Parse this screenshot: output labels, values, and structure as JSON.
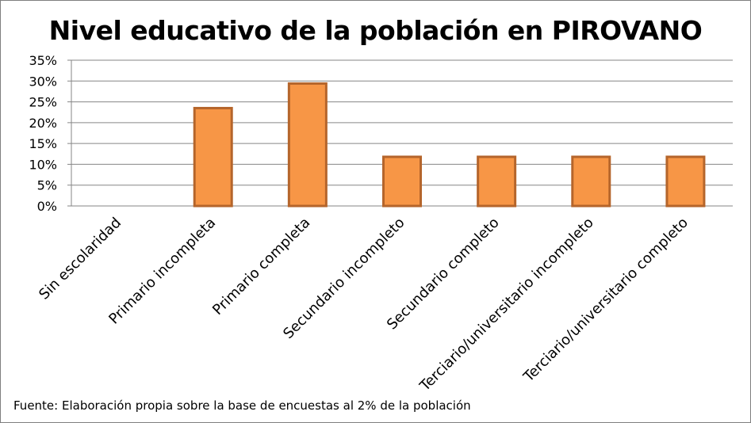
{
  "chart_data": {
    "type": "bar",
    "title": "Nivel educativo de la población en PIROVANO",
    "categories": [
      "Sin escolaridad",
      "Primario incompleta",
      "Primario completa",
      "Secundario incompleto",
      "Secundario completo",
      "Terciario/universitario incompleto",
      "Terciario/universitario completo"
    ],
    "values": [
      0,
      23.5,
      29.4,
      11.8,
      11.8,
      11.8,
      11.8
    ],
    "y_unit": "%",
    "ylim": [
      0,
      35
    ],
    "y_ticks": [
      "0%",
      "5%",
      "10%",
      "15%",
      "20%",
      "25%",
      "30%",
      "35%"
    ],
    "grid": true,
    "legend": "none",
    "bar_color": "#F79646",
    "bar_border_color": "#B5652B",
    "gridline_color": "#868686"
  },
  "footnote": "Fuente:  Elaboración propia sobre la base de encuestas al 2%  de la población"
}
